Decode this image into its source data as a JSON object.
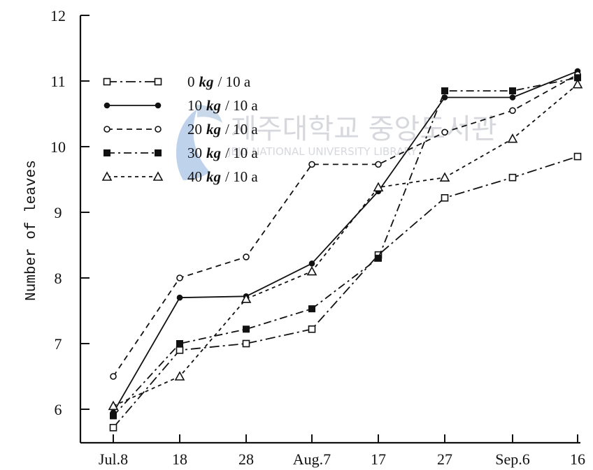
{
  "watermark": {
    "korean": "제주대학교 중앙도서관",
    "english": "JEJU NATIONAL UNIVERSITY LIBRARY"
  },
  "chart_data": {
    "type": "line",
    "title": "",
    "xlabel": "",
    "ylabel": "Number of leaves",
    "categories": [
      "Jul.8",
      "18",
      "28",
      "Aug.7",
      "17",
      "27",
      "Sep.6",
      "16"
    ],
    "ylim": [
      5.5,
      12
    ],
    "yticks": [
      6,
      7,
      8,
      9,
      10,
      11,
      12
    ],
    "grid": false,
    "legend_position": "top-left",
    "series": [
      {
        "name": "0 kg/10 a",
        "value_text": "0",
        "unit_text": "kg",
        "suffix_text": "/ 10 a",
        "marker": "open-square",
        "dash": "long-dash-dot",
        "values": [
          5.72,
          6.9,
          7.0,
          7.22,
          8.35,
          9.22,
          9.53,
          9.85
        ]
      },
      {
        "name": "10 kg/10 a",
        "value_text": "10",
        "unit_text": "kg",
        "suffix_text": "/ 10 a",
        "marker": "filled-circle",
        "dash": "solid",
        "values": [
          5.95,
          7.7,
          7.72,
          8.22,
          9.32,
          10.75,
          10.75,
          11.15
        ]
      },
      {
        "name": "20 kg/10 a",
        "value_text": "20",
        "unit_text": "kg",
        "suffix_text": "/ 10 a",
        "marker": "open-circle",
        "dash": "dashed",
        "values": [
          6.5,
          8.0,
          8.32,
          9.73,
          9.73,
          10.22,
          10.55,
          11.1
        ]
      },
      {
        "name": "30 kg/10 a",
        "value_text": "30",
        "unit_text": "kg",
        "suffix_text": "/ 10 a",
        "marker": "filled-square",
        "dash": "dash-dot",
        "values": [
          5.9,
          7.0,
          7.22,
          7.53,
          8.3,
          10.85,
          10.85,
          11.05
        ]
      },
      {
        "name": "40 kg/10 a",
        "value_text": "40",
        "unit_text": "kg",
        "suffix_text": "/ 10 a",
        "marker": "open-triangle",
        "dash": "short-dash",
        "values": [
          6.05,
          6.5,
          7.68,
          8.1,
          9.38,
          9.53,
          10.12,
          10.95
        ]
      }
    ]
  }
}
